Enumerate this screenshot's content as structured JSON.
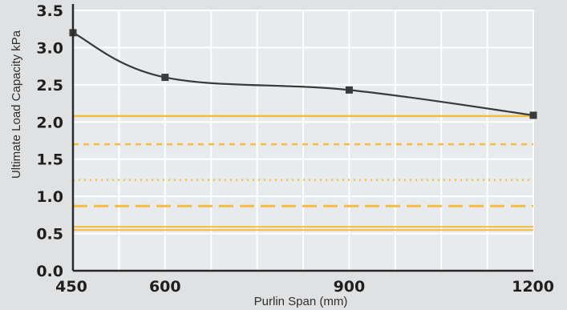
{
  "chart_data": {
    "type": "line",
    "title": "",
    "xlabel": "Purlin Span (mm)",
    "ylabel": "Ultimate Load Capacity kPa",
    "xlim": [
      450,
      1200
    ],
    "ylim": [
      0,
      3.5
    ],
    "x_ticks": [
      450,
      600,
      900,
      1200
    ],
    "y_ticks": [
      "0.0",
      "0.5",
      "1.0",
      "1.5",
      "2.0",
      "2.5",
      "3.0",
      "3.5"
    ],
    "x_minor_grid": [
      450,
      525,
      600,
      675,
      750,
      825,
      900,
      975,
      1050,
      1125,
      1200
    ],
    "grid": true,
    "series": [
      {
        "color": "#3a3a3a",
        "marker": "square",
        "x": [
          450,
          600,
          900,
          1200
        ],
        "y": [
          3.2,
          2.6,
          2.43,
          2.09
        ]
      }
    ],
    "reference_lines": [
      {
        "y": 2.08,
        "style": "solid",
        "color": "#f6bd3c"
      },
      {
        "y": 1.7,
        "style": "short-dash",
        "color": "#f6bd3c"
      },
      {
        "y": 1.22,
        "style": "dotted",
        "color": "#f6bd3c"
      },
      {
        "y": 0.87,
        "style": "long-dash",
        "color": "#f6bd3c"
      },
      {
        "y": 0.57,
        "style": "double",
        "color": "#f6bd3c"
      }
    ],
    "colors": {
      "background": "#e0e1e3",
      "plot_background": "#e8ebee",
      "grid": "#ffffff",
      "axis": "#2a2a2a"
    }
  }
}
